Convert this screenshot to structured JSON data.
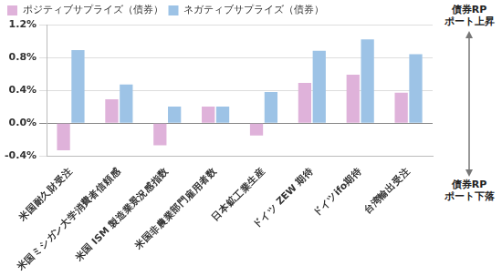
{
  "chart_data": {
    "type": "bar",
    "categories": [
      "米国耐久財受注",
      "米国ミシガン大学消費者信頼感",
      "米国 ISM 製造業景況感指数",
      "米国非農業部門雇用者数",
      "日本鉱工業生産",
      "ドイツ ZEW 期待",
      "ドイツifo期待",
      "台湾輸出受注"
    ],
    "series": [
      {
        "name": "ポジティブサプライズ（債券）",
        "color": "#dfb2da",
        "values": [
          -0.33,
          0.29,
          -0.27,
          0.2,
          -0.15,
          0.49,
          0.59,
          0.37
        ]
      },
      {
        "name": "ネガティブサプライズ（債券）",
        "color": "#9dc3e6",
        "values": [
          0.89,
          0.47,
          0.2,
          0.2,
          0.38,
          0.88,
          1.02,
          0.84
        ]
      }
    ],
    "ylim": [
      -0.4,
      1.2
    ],
    "yticks": [
      {
        "value": -0.4,
        "label": "-0.4%"
      },
      {
        "value": 0,
        "label": "0.0%"
      },
      {
        "value": 0.4,
        "label": "0.4%"
      },
      {
        "value": 0.8,
        "label": "0.8%"
      },
      {
        "value": 1.2,
        "label": "1.2%"
      }
    ],
    "grid": true,
    "legend": "top",
    "annotations": [
      {
        "lines": [
          "債券RP",
          "ポート上昇"
        ]
      },
      {
        "lines": [
          "債券RP",
          "ポート下落"
        ]
      }
    ]
  }
}
